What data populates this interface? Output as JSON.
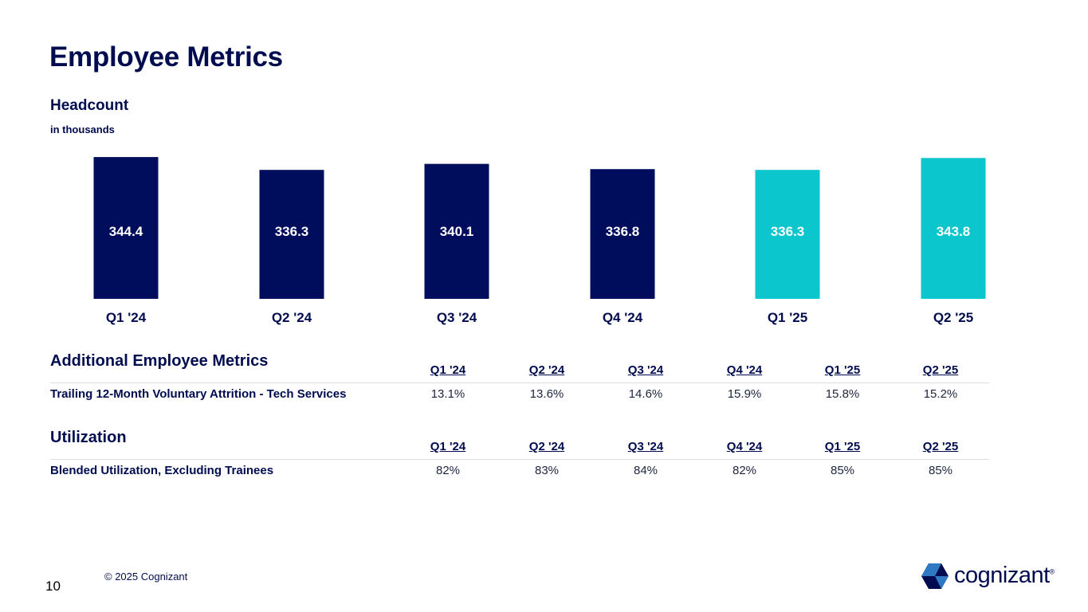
{
  "title": "Employee Metrics",
  "chart_data": {
    "type": "bar",
    "title": "Headcount",
    "subtitle": "in thousands",
    "categories": [
      "Q1 '24",
      "Q2 '24",
      "Q3 '24",
      "Q4 '24",
      "Q1 '25",
      "Q2 '25"
    ],
    "values": [
      344.4,
      336.3,
      340.1,
      336.8,
      336.3,
      343.8
    ],
    "value_labels": [
      "344.4",
      "336.3",
      "340.1",
      "336.8",
      "336.3",
      "343.8"
    ],
    "colors": [
      "#000c5c",
      "#000c5c",
      "#000c5c",
      "#000c5c",
      "#0bc6cc",
      "#0bc6cc"
    ],
    "xlabel": "",
    "ylabel": "",
    "grid": false,
    "legend": "none"
  },
  "attrition": {
    "title": "Additional Employee Metrics",
    "columns": [
      "Q1 '24",
      "Q2 '24",
      "Q3 '24",
      "Q4 '24",
      "Q1 '25",
      "Q2 '25"
    ],
    "row_label": "Trailing 12-Month Voluntary Attrition - Tech Services",
    "values": [
      "13.1%",
      "13.6%",
      "14.6%",
      "15.9%",
      "15.8%",
      "15.2%"
    ]
  },
  "utilization": {
    "title": "Utilization",
    "columns": [
      "Q1 '24",
      "Q2 '24",
      "Q3 '24",
      "Q4 '24",
      "Q1 '25",
      "Q2 '25"
    ],
    "row_label": "Blended Utilization, Excluding Trainees",
    "values": [
      "82%",
      "83%",
      "84%",
      "82%",
      "85%",
      "85%"
    ]
  },
  "footer": {
    "page_number": "10",
    "copyright": "© 2025 Cognizant",
    "logo_text": "cognizant",
    "logo_mark": "®"
  },
  "colors": {
    "navy": "#000c5c",
    "teal": "#0bc6cc",
    "logo_blue": "#2f78c4",
    "logo_dark": "#000c4f"
  }
}
